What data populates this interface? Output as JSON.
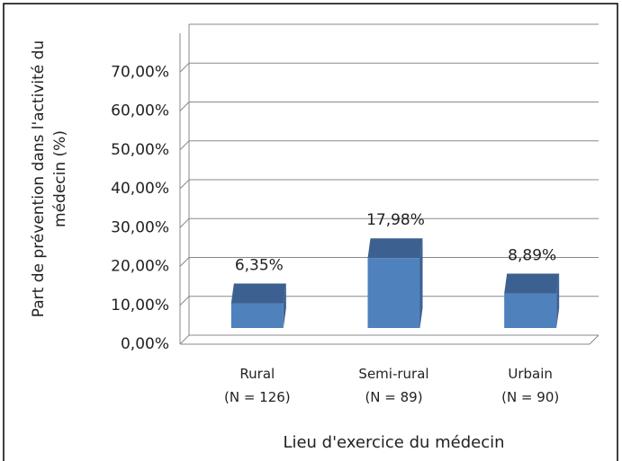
{
  "chart_data": {
    "type": "bar3d",
    "y_label": "Part de prévention dans l'activité du médecin (%)",
    "x_label": "Lieu d'exercice du médecin",
    "categories": [
      "Rural\n(N = 126)",
      "Semi-rural\n(N = 89)",
      "Urbain\n(N = 90)"
    ],
    "values": [
      6.35,
      17.98,
      8.89
    ],
    "value_labels": [
      "6,35%",
      "17,98%",
      "8,89%"
    ],
    "color": "#4f81bd",
    "top_color": "#3c6190",
    "ylim": [
      0,
      80
    ],
    "yticks": [
      {
        "value": 0,
        "label": "0,00%"
      },
      {
        "value": 10,
        "label": "10,00%"
      },
      {
        "value": 20,
        "label": "20,00%"
      },
      {
        "value": 30,
        "label": "30,00%"
      },
      {
        "value": 40,
        "label": "40,00%"
      },
      {
        "value": 50,
        "label": "50,00%"
      },
      {
        "value": 60,
        "label": "60,00%"
      },
      {
        "value": 70,
        "label": "70,00%"
      }
    ],
    "grid": true
  }
}
